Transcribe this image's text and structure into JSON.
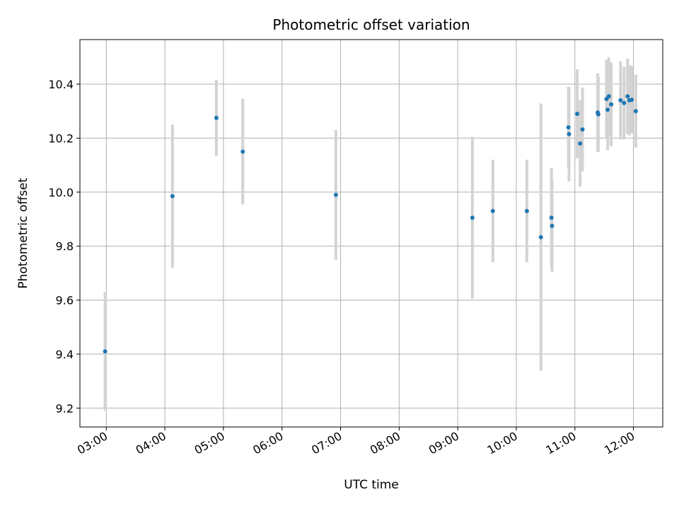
{
  "chart_data": {
    "type": "scatter",
    "title": "Photometric offset variation",
    "xlabel": "UTC time",
    "ylabel": "Photometric offset",
    "x_unit": "hours (UTC)",
    "xlim": [
      2.55,
      12.5
    ],
    "ylim": [
      9.13,
      10.565
    ],
    "grid": true,
    "x_ticks": [
      {
        "value": 3,
        "label": "03:00"
      },
      {
        "value": 4,
        "label": "04:00"
      },
      {
        "value": 5,
        "label": "05:00"
      },
      {
        "value": 6,
        "label": "06:00"
      },
      {
        "value": 7,
        "label": "07:00"
      },
      {
        "value": 8,
        "label": "08:00"
      },
      {
        "value": 9,
        "label": "09:00"
      },
      {
        "value": 10,
        "label": "10:00"
      },
      {
        "value": 11,
        "label": "11:00"
      },
      {
        "value": 12,
        "label": "12:00"
      }
    ],
    "y_ticks": [
      {
        "value": 9.2,
        "label": "9.2"
      },
      {
        "value": 9.4,
        "label": "9.4"
      },
      {
        "value": 9.6,
        "label": "9.6"
      },
      {
        "value": 9.8,
        "label": "9.8"
      },
      {
        "value": 10.0,
        "label": "10.0"
      },
      {
        "value": 10.2,
        "label": "10.2"
      },
      {
        "value": 10.4,
        "label": "10.4"
      }
    ],
    "colors": {
      "point": "#1f77b4",
      "error_bar": "#d3d3d3",
      "grid": "#b0b0b0"
    },
    "points": [
      {
        "x": 2.98,
        "y": 9.41,
        "err": 0.22
      },
      {
        "x": 4.13,
        "y": 9.985,
        "err": 0.265
      },
      {
        "x": 4.88,
        "y": 10.275,
        "err": 0.14
      },
      {
        "x": 5.33,
        "y": 10.15,
        "err": 0.195
      },
      {
        "x": 6.92,
        "y": 9.99,
        "err": 0.24
      },
      {
        "x": 9.25,
        "y": 9.905,
        "err": 0.3
      },
      {
        "x": 9.6,
        "y": 9.93,
        "err": 0.19
      },
      {
        "x": 10.18,
        "y": 9.93,
        "err": 0.19
      },
      {
        "x": 10.42,
        "y": 9.833,
        "err": 0.495
      },
      {
        "x": 10.6,
        "y": 9.905,
        "err": 0.185
      },
      {
        "x": 10.61,
        "y": 9.875,
        "err": 0.17
      },
      {
        "x": 10.89,
        "y": 10.24,
        "err": 0.15
      },
      {
        "x": 10.9,
        "y": 10.215,
        "err": 0.175
      },
      {
        "x": 11.04,
        "y": 10.29,
        "err": 0.165
      },
      {
        "x": 11.09,
        "y": 10.18,
        "err": 0.16
      },
      {
        "x": 11.13,
        "y": 10.232,
        "err": 0.155
      },
      {
        "x": 11.39,
        "y": 10.295,
        "err": 0.145
      },
      {
        "x": 11.4,
        "y": 10.288,
        "err": 0.14
      },
      {
        "x": 11.54,
        "y": 10.345,
        "err": 0.145
      },
      {
        "x": 11.56,
        "y": 10.305,
        "err": 0.15
      },
      {
        "x": 11.58,
        "y": 10.355,
        "err": 0.145
      },
      {
        "x": 11.62,
        "y": 10.325,
        "err": 0.155
      },
      {
        "x": 11.78,
        "y": 10.34,
        "err": 0.145
      },
      {
        "x": 11.84,
        "y": 10.33,
        "err": 0.135
      },
      {
        "x": 11.9,
        "y": 10.355,
        "err": 0.14
      },
      {
        "x": 11.93,
        "y": 10.34,
        "err": 0.13
      },
      {
        "x": 11.97,
        "y": 10.342,
        "err": 0.125
      },
      {
        "x": 12.04,
        "y": 10.3,
        "err": 0.135
      }
    ]
  }
}
